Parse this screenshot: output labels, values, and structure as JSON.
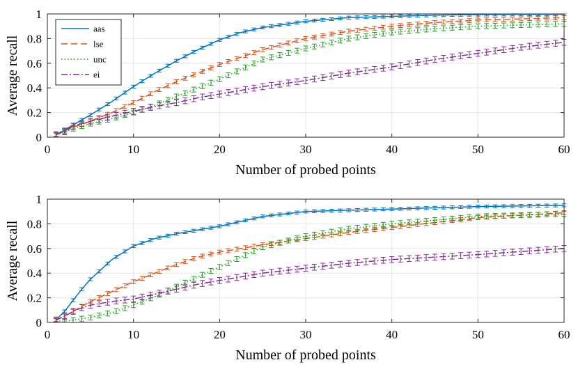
{
  "chart_data": [
    {
      "type": "line",
      "xlabel": "Number of probed points",
      "ylabel": "Average recall",
      "xlim": [
        0,
        60
      ],
      "ylim": [
        0,
        1
      ],
      "xticks": [
        "0",
        "10",
        "20",
        "30",
        "40",
        "50",
        "60"
      ],
      "yticks": [
        "0",
        "0.2",
        "0.4",
        "0.6",
        "0.8",
        "1"
      ],
      "grid": true,
      "legend_position": "top-left",
      "x": [
        1,
        2,
        3,
        5,
        7.5,
        10,
        12.5,
        15,
        17.5,
        20,
        22.5,
        25,
        30,
        35,
        40,
        45,
        50,
        55,
        60
      ],
      "series": [
        {
          "name": "aas",
          "color": "#0072BD",
          "dash": "solid",
          "values": [
            0.02,
            0.06,
            0.1,
            0.18,
            0.29,
            0.41,
            0.52,
            0.62,
            0.71,
            0.79,
            0.85,
            0.89,
            0.94,
            0.97,
            0.98,
            0.99,
            0.995,
            0.997,
            0.998
          ]
        },
        {
          "name": "lse",
          "color": "#D95319",
          "dash": "dashed",
          "values": [
            0.02,
            0.05,
            0.08,
            0.13,
            0.2,
            0.28,
            0.37,
            0.45,
            0.52,
            0.59,
            0.65,
            0.71,
            0.8,
            0.86,
            0.9,
            0.93,
            0.95,
            0.96,
            0.97
          ]
        },
        {
          "name": "unc",
          "color": "#1F9E1F",
          "dash": "dotted",
          "values": [
            0.02,
            0.04,
            0.07,
            0.11,
            0.15,
            0.2,
            0.26,
            0.33,
            0.4,
            0.47,
            0.55,
            0.63,
            0.72,
            0.8,
            0.85,
            0.88,
            0.9,
            0.91,
            0.92
          ]
        },
        {
          "name": "ei",
          "color": "#7E2F8E",
          "dash": "dashdot",
          "values": [
            0.02,
            0.05,
            0.09,
            0.13,
            0.17,
            0.21,
            0.25,
            0.28,
            0.32,
            0.35,
            0.38,
            0.41,
            0.46,
            0.52,
            0.57,
            0.63,
            0.68,
            0.73,
            0.77
          ]
        }
      ]
    },
    {
      "type": "line",
      "xlabel": "Number of probed points",
      "ylabel": "Average recall",
      "xlim": [
        0,
        60
      ],
      "ylim": [
        0,
        1
      ],
      "xticks": [
        "0",
        "10",
        "20",
        "30",
        "40",
        "50",
        "60"
      ],
      "yticks": [
        "0",
        "0.2",
        "0.4",
        "0.6",
        "0.8",
        "1"
      ],
      "grid": true,
      "x": [
        1,
        2,
        3,
        4,
        5,
        7.5,
        10,
        12.5,
        15,
        17.5,
        20,
        22.5,
        25,
        30,
        35,
        40,
        45,
        50,
        55,
        60
      ],
      "series": [
        {
          "name": "aas",
          "color": "#0072BD",
          "dash": "solid",
          "values": [
            0.02,
            0.09,
            0.18,
            0.27,
            0.35,
            0.51,
            0.62,
            0.68,
            0.72,
            0.75,
            0.78,
            0.82,
            0.86,
            0.9,
            0.91,
            0.92,
            0.93,
            0.94,
            0.945,
            0.95
          ]
        },
        {
          "name": "lse",
          "color": "#D95319",
          "dash": "dashed",
          "values": [
            0.02,
            0.05,
            0.09,
            0.13,
            0.17,
            0.25,
            0.33,
            0.4,
            0.47,
            0.53,
            0.57,
            0.6,
            0.63,
            0.68,
            0.73,
            0.77,
            0.81,
            0.85,
            0.87,
            0.89
          ]
        },
        {
          "name": "unc",
          "color": "#1F9E1F",
          "dash": "dotted",
          "values": [
            0.01,
            0.01,
            0.02,
            0.03,
            0.04,
            0.08,
            0.14,
            0.21,
            0.29,
            0.37,
            0.45,
            0.53,
            0.61,
            0.7,
            0.76,
            0.8,
            0.83,
            0.86,
            0.87,
            0.88
          ]
        },
        {
          "name": "ei",
          "color": "#7E2F8E",
          "dash": "dashdot",
          "values": [
            0.02,
            0.05,
            0.09,
            0.12,
            0.14,
            0.17,
            0.19,
            0.23,
            0.27,
            0.31,
            0.34,
            0.37,
            0.4,
            0.44,
            0.48,
            0.51,
            0.53,
            0.55,
            0.575,
            0.6
          ]
        }
      ]
    }
  ]
}
